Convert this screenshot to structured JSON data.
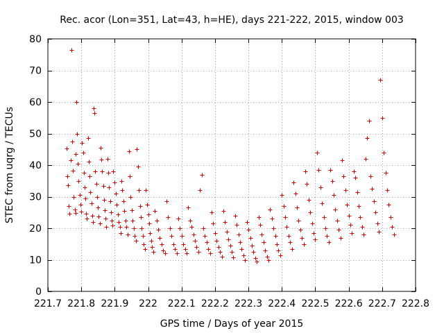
{
  "chart_data": {
    "type": "scatter",
    "title": "Rec. acor (Lon=351, Lat=43, h=HE), days 221-222, 2015, window 003",
    "xlabel": "GPS time / Days of year 2015",
    "ylabel": "STEC from uqrg / TECUs",
    "xlim": [
      221.7,
      222.8
    ],
    "ylim": [
      0,
      80
    ],
    "xticks": [
      221.7,
      221.8,
      221.9,
      222.0,
      222.1,
      222.2,
      222.3,
      222.4,
      222.5,
      222.6,
      222.7,
      222.8
    ],
    "xtick_labels": [
      "221.7",
      "221.8",
      "221.9",
      "222",
      "222.1",
      "222.2",
      "222.3",
      "222.4",
      "222.5",
      "222.6",
      "222.7",
      "222.8"
    ],
    "yticks": [
      0,
      10,
      20,
      30,
      40,
      50,
      60,
      70,
      80
    ],
    "ytick_labels": [
      "0",
      "10",
      "20",
      "30",
      "40",
      "50",
      "60",
      "70",
      "80"
    ],
    "grid": true,
    "marker": "plus",
    "color": "#cc0000",
    "series": [
      {
        "points": [
          [
            221.755,
            45.2
          ],
          [
            221.758,
            36.4
          ],
          [
            221.76,
            33.6
          ],
          [
            221.762,
            27.0
          ],
          [
            221.765,
            24.6
          ],
          [
            221.768,
            41.5
          ],
          [
            221.77,
            76.5
          ],
          [
            221.772,
            47.5
          ],
          [
            221.775,
            38.2
          ],
          [
            221.777,
            30.0
          ],
          [
            221.78,
            26.0
          ],
          [
            221.782,
            24.8
          ],
          [
            221.784,
            43.5
          ],
          [
            221.786,
            60.0
          ],
          [
            221.788,
            50.0
          ],
          [
            221.79,
            40.5
          ],
          [
            221.792,
            35.0
          ],
          [
            221.795,
            30.5
          ],
          [
            221.797,
            27.5
          ],
          [
            221.8,
            25.3
          ],
          [
            221.802,
            47.0
          ],
          [
            221.805,
            44.0
          ],
          [
            221.807,
            37.5
          ],
          [
            221.81,
            33.0
          ],
          [
            221.812,
            29.5
          ],
          [
            221.815,
            24.6
          ],
          [
            221.817,
            23.0
          ],
          [
            221.82,
            48.5
          ],
          [
            221.822,
            41.2
          ],
          [
            221.825,
            36.5
          ],
          [
            221.827,
            31.5
          ],
          [
            221.83,
            28.0
          ],
          [
            221.833,
            24.0
          ],
          [
            221.835,
            22.0
          ],
          [
            221.838,
            58.0
          ],
          [
            221.84,
            56.5
          ],
          [
            221.842,
            38.0
          ],
          [
            221.845,
            34.0
          ],
          [
            221.847,
            30.0
          ],
          [
            221.85,
            26.5
          ],
          [
            221.852,
            23.8
          ],
          [
            221.855,
            21.5
          ],
          [
            221.858,
            45.5
          ],
          [
            221.86,
            41.8
          ],
          [
            221.862,
            38.0
          ],
          [
            221.865,
            33.5
          ],
          [
            221.868,
            29.0
          ],
          [
            221.87,
            25.8
          ],
          [
            221.872,
            23.0
          ],
          [
            221.875,
            20.5
          ],
          [
            221.878,
            42.0
          ],
          [
            221.88,
            37.5
          ],
          [
            221.883,
            33.0
          ],
          [
            221.886,
            28.5
          ],
          [
            221.888,
            25.0
          ],
          [
            221.89,
            22.5
          ],
          [
            221.893,
            20.8
          ],
          [
            221.896,
            38.0
          ],
          [
            221.9,
            34.5
          ],
          [
            221.903,
            31.0
          ],
          [
            221.906,
            27.5
          ],
          [
            221.909,
            24.5
          ],
          [
            221.912,
            22.0
          ],
          [
            221.915,
            20.5
          ],
          [
            221.918,
            18.5
          ],
          [
            221.92,
            35.0
          ],
          [
            221.923,
            32.0
          ],
          [
            221.926,
            28.5
          ],
          [
            221.929,
            25.5
          ],
          [
            221.932,
            22.5
          ],
          [
            221.935,
            20.5
          ],
          [
            221.938,
            18.0
          ],
          [
            221.942,
            44.5
          ],
          [
            221.945,
            36.5
          ],
          [
            221.948,
            30.0
          ],
          [
            221.951,
            25.8
          ],
          [
            221.954,
            22.5
          ],
          [
            221.957,
            20.0
          ],
          [
            221.96,
            17.5
          ],
          [
            221.963,
            16.0
          ],
          [
            221.966,
            45.0
          ],
          [
            221.969,
            39.5
          ],
          [
            221.972,
            32.0
          ],
          [
            221.975,
            27.0
          ],
          [
            221.978,
            23.5
          ],
          [
            221.981,
            20.0
          ],
          [
            221.984,
            17.5
          ],
          [
            221.987,
            15.0
          ],
          [
            221.99,
            13.5
          ],
          [
            221.993,
            32.0
          ],
          [
            221.996,
            27.5
          ],
          [
            222.0,
            24.5
          ],
          [
            222.003,
            21.5
          ],
          [
            222.006,
            18.5
          ],
          [
            222.009,
            16.0
          ],
          [
            222.012,
            14.0
          ],
          [
            222.015,
            12.5
          ],
          [
            222.02,
            25.5
          ],
          [
            222.025,
            22.5
          ],
          [
            222.03,
            19.5
          ],
          [
            222.035,
            17.0
          ],
          [
            222.04,
            15.0
          ],
          [
            222.045,
            13.0
          ],
          [
            222.05,
            12.0
          ],
          [
            222.055,
            28.5
          ],
          [
            222.06,
            23.5
          ],
          [
            222.065,
            20.0
          ],
          [
            222.07,
            17.5
          ],
          [
            222.075,
            15.0
          ],
          [
            222.08,
            13.5
          ],
          [
            222.085,
            12.0
          ],
          [
            222.09,
            23.0
          ],
          [
            222.095,
            20.0
          ],
          [
            222.1,
            17.5
          ],
          [
            222.105,
            15.0
          ],
          [
            222.11,
            13.5
          ],
          [
            222.115,
            12.0
          ],
          [
            222.12,
            26.5
          ],
          [
            222.125,
            22.5
          ],
          [
            222.13,
            20.5
          ],
          [
            222.135,
            18.0
          ],
          [
            222.14,
            16.0
          ],
          [
            222.145,
            14.0
          ],
          [
            222.15,
            12.5
          ],
          [
            222.155,
            32.0
          ],
          [
            222.16,
            37.0
          ],
          [
            222.165,
            20.0
          ],
          [
            222.17,
            17.5
          ],
          [
            222.175,
            15.5
          ],
          [
            222.18,
            13.5
          ],
          [
            222.185,
            12.0
          ],
          [
            222.19,
            25.0
          ],
          [
            222.195,
            21.5
          ],
          [
            222.2,
            18.5
          ],
          [
            222.205,
            16.0
          ],
          [
            222.21,
            14.0
          ],
          [
            222.215,
            12.5
          ],
          [
            222.22,
            11.0
          ],
          [
            222.225,
            25.5
          ],
          [
            222.23,
            22.0
          ],
          [
            222.235,
            19.0
          ],
          [
            222.24,
            16.5
          ],
          [
            222.245,
            14.5
          ],
          [
            222.25,
            12.5
          ],
          [
            222.255,
            10.8
          ],
          [
            222.26,
            24.0
          ],
          [
            222.265,
            21.0
          ],
          [
            222.27,
            18.0
          ],
          [
            222.275,
            15.5
          ],
          [
            222.28,
            13.5
          ],
          [
            222.285,
            11.5
          ],
          [
            222.29,
            10.0
          ],
          [
            222.295,
            22.0
          ],
          [
            222.3,
            19.5
          ],
          [
            222.305,
            17.0
          ],
          [
            222.31,
            14.5
          ],
          [
            222.315,
            12.5
          ],
          [
            222.32,
            10.5
          ],
          [
            222.325,
            9.5
          ],
          [
            222.33,
            23.5
          ],
          [
            222.335,
            21.0
          ],
          [
            222.34,
            18.0
          ],
          [
            222.345,
            15.5
          ],
          [
            222.35,
            13.0
          ],
          [
            222.355,
            11.0
          ],
          [
            222.36,
            9.8
          ],
          [
            222.365,
            26.0
          ],
          [
            222.37,
            23.0
          ],
          [
            222.375,
            20.0
          ],
          [
            222.38,
            17.5
          ],
          [
            222.385,
            15.0
          ],
          [
            222.39,
            13.0
          ],
          [
            222.395,
            11.5
          ],
          [
            222.4,
            30.5
          ],
          [
            222.405,
            27.0
          ],
          [
            222.41,
            23.5
          ],
          [
            222.415,
            20.5
          ],
          [
            222.42,
            17.5
          ],
          [
            222.425,
            15.5
          ],
          [
            222.43,
            13.5
          ],
          [
            222.435,
            34.5
          ],
          [
            222.44,
            31.0
          ],
          [
            222.445,
            26.5
          ],
          [
            222.45,
            22.5
          ],
          [
            222.455,
            19.5
          ],
          [
            222.46,
            17.0
          ],
          [
            222.465,
            15.0
          ],
          [
            222.47,
            38.0
          ],
          [
            222.475,
            34.0
          ],
          [
            222.48,
            29.0
          ],
          [
            222.485,
            25.0
          ],
          [
            222.49,
            21.5
          ],
          [
            222.495,
            18.5
          ],
          [
            222.5,
            16.5
          ],
          [
            222.505,
            44.0
          ],
          [
            222.51,
            38.5
          ],
          [
            222.515,
            33.0
          ],
          [
            222.52,
            28.0
          ],
          [
            222.525,
            23.5
          ],
          [
            222.53,
            20.0
          ],
          [
            222.535,
            17.5
          ],
          [
            222.54,
            15.5
          ],
          [
            222.545,
            38.5
          ],
          [
            222.55,
            35.0
          ],
          [
            222.555,
            30.5
          ],
          [
            222.56,
            26.0
          ],
          [
            222.565,
            22.5
          ],
          [
            222.57,
            19.5
          ],
          [
            222.575,
            17.0
          ],
          [
            222.58,
            41.5
          ],
          [
            222.585,
            36.5
          ],
          [
            222.59,
            32.0
          ],
          [
            222.595,
            27.5
          ],
          [
            222.6,
            24.0
          ],
          [
            222.605,
            21.0
          ],
          [
            222.61,
            18.5
          ],
          [
            222.615,
            38.0
          ],
          [
            222.62,
            36.0
          ],
          [
            222.625,
            31.5
          ],
          [
            222.63,
            27.0
          ],
          [
            222.635,
            23.5
          ],
          [
            222.64,
            20.5
          ],
          [
            222.645,
            18.0
          ],
          [
            222.65,
            42.0
          ],
          [
            222.655,
            48.5
          ],
          [
            222.66,
            54.0
          ],
          [
            222.665,
            36.5
          ],
          [
            222.67,
            32.5
          ],
          [
            222.675,
            28.5
          ],
          [
            222.68,
            25.0
          ],
          [
            222.685,
            21.5
          ],
          [
            222.69,
            19.0
          ],
          [
            222.695,
            67.0
          ],
          [
            222.7,
            55.0
          ],
          [
            222.705,
            44.0
          ],
          [
            222.71,
            37.5
          ],
          [
            222.715,
            32.0
          ],
          [
            222.72,
            27.5
          ],
          [
            222.725,
            23.5
          ],
          [
            222.73,
            20.5
          ],
          [
            222.735,
            18.0
          ]
        ]
      }
    ]
  }
}
